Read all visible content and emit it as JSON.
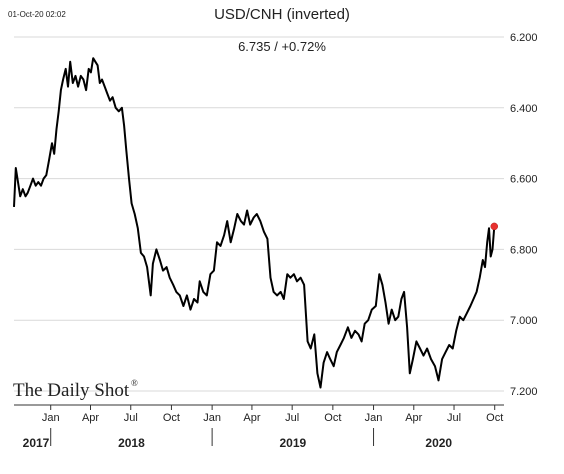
{
  "header": {
    "timestamp": "01-Oct-20 02:02",
    "title": "USD/CNH (inverted)",
    "last_value_text": "6.735  /  +0.72%"
  },
  "brand": {
    "text": "The Daily Shot",
    "mark": "®"
  },
  "colors": {
    "line": "#000000",
    "last_point": "#e8312f",
    "grid": "#d9d9d9"
  },
  "chart_data": {
    "type": "line",
    "title": "USD/CNH (inverted)",
    "y_inverted": true,
    "ylim": [
      6.2,
      7.2
    ],
    "yticks": [
      6.2,
      6.4,
      6.6,
      6.8,
      7.0,
      7.2
    ],
    "ytick_labels": [
      "6.200",
      "6.400",
      "6.600",
      "6.800",
      "7.000",
      "7.200"
    ],
    "xlim": [
      "2017-10-10",
      "2020-10-22"
    ],
    "xticks": [
      {
        "date": "2018-01-01",
        "label": "Jan"
      },
      {
        "date": "2018-04-01",
        "label": "Apr"
      },
      {
        "date": "2018-07-01",
        "label": "Jul"
      },
      {
        "date": "2018-10-01",
        "label": "Oct"
      },
      {
        "date": "2019-01-01",
        "label": "Jan"
      },
      {
        "date": "2019-04-01",
        "label": "Apr"
      },
      {
        "date": "2019-07-01",
        "label": "Jul"
      },
      {
        "date": "2019-10-01",
        "label": "Oct"
      },
      {
        "date": "2020-01-01",
        "label": "Jan"
      },
      {
        "date": "2020-04-01",
        "label": "Apr"
      },
      {
        "date": "2020-07-01",
        "label": "Jul"
      },
      {
        "date": "2020-10-01",
        "label": "Oct"
      }
    ],
    "years": [
      {
        "label": "2017",
        "divider": null
      },
      {
        "label": "2018",
        "divider": "2018-01-01"
      },
      {
        "label": "2019",
        "divider": "2019-01-01"
      },
      {
        "label": "2020",
        "divider": "2020-01-01"
      }
    ],
    "series": [
      {
        "points": [
          [
            "2017-10-10",
            6.68
          ],
          [
            "2017-10-14",
            6.57
          ],
          [
            "2017-10-19",
            6.61
          ],
          [
            "2017-10-24",
            6.65
          ],
          [
            "2017-10-30",
            6.63
          ],
          [
            "2017-11-05",
            6.65
          ],
          [
            "2017-11-10",
            6.64
          ],
          [
            "2017-11-16",
            6.62
          ],
          [
            "2017-11-22",
            6.6
          ],
          [
            "2017-11-28",
            6.62
          ],
          [
            "2017-12-04",
            6.61
          ],
          [
            "2017-12-10",
            6.62
          ],
          [
            "2017-12-16",
            6.6
          ],
          [
            "2017-12-22",
            6.59
          ],
          [
            "2017-12-28",
            6.55
          ],
          [
            "2018-01-04",
            6.5
          ],
          [
            "2018-01-09",
            6.53
          ],
          [
            "2018-01-14",
            6.46
          ],
          [
            "2018-01-19",
            6.41
          ],
          [
            "2018-01-24",
            6.35
          ],
          [
            "2018-01-29",
            6.32
          ],
          [
            "2018-02-04",
            6.29
          ],
          [
            "2018-02-09",
            6.34
          ],
          [
            "2018-02-14",
            6.27
          ],
          [
            "2018-02-20",
            6.33
          ],
          [
            "2018-02-26",
            6.31
          ],
          [
            "2018-03-04",
            6.34
          ],
          [
            "2018-03-10",
            6.31
          ],
          [
            "2018-03-16",
            6.32
          ],
          [
            "2018-03-22",
            6.35
          ],
          [
            "2018-03-28",
            6.29
          ],
          [
            "2018-04-02",
            6.3
          ],
          [
            "2018-04-07",
            6.26
          ],
          [
            "2018-04-12",
            6.27
          ],
          [
            "2018-04-17",
            6.28
          ],
          [
            "2018-04-22",
            6.33
          ],
          [
            "2018-04-27",
            6.32
          ],
          [
            "2018-05-03",
            6.34
          ],
          [
            "2018-05-09",
            6.36
          ],
          [
            "2018-05-15",
            6.38
          ],
          [
            "2018-05-21",
            6.37
          ],
          [
            "2018-05-28",
            6.4
          ],
          [
            "2018-06-04",
            6.41
          ],
          [
            "2018-06-11",
            6.4
          ],
          [
            "2018-06-16",
            6.45
          ],
          [
            "2018-06-21",
            6.52
          ],
          [
            "2018-06-27",
            6.6
          ],
          [
            "2018-07-03",
            6.67
          ],
          [
            "2018-07-10",
            6.7
          ],
          [
            "2018-07-17",
            6.74
          ],
          [
            "2018-07-24",
            6.81
          ],
          [
            "2018-07-31",
            6.82
          ],
          [
            "2018-08-07",
            6.85
          ],
          [
            "2018-08-15",
            6.93
          ],
          [
            "2018-08-20",
            6.84
          ],
          [
            "2018-08-28",
            6.8
          ],
          [
            "2018-09-05",
            6.83
          ],
          [
            "2018-09-12",
            6.86
          ],
          [
            "2018-09-20",
            6.85
          ],
          [
            "2018-09-27",
            6.88
          ],
          [
            "2018-10-05",
            6.9
          ],
          [
            "2018-10-12",
            6.92
          ],
          [
            "2018-10-20",
            6.93
          ],
          [
            "2018-10-28",
            6.96
          ],
          [
            "2018-11-05",
            6.93
          ],
          [
            "2018-11-13",
            6.97
          ],
          [
            "2018-11-21",
            6.94
          ],
          [
            "2018-11-29",
            6.95
          ],
          [
            "2018-12-04",
            6.89
          ],
          [
            "2018-12-12",
            6.92
          ],
          [
            "2018-12-20",
            6.93
          ],
          [
            "2018-12-28",
            6.87
          ],
          [
            "2019-01-05",
            6.86
          ],
          [
            "2019-01-12",
            6.78
          ],
          [
            "2019-01-20",
            6.79
          ],
          [
            "2019-01-28",
            6.76
          ],
          [
            "2019-02-04",
            6.72
          ],
          [
            "2019-02-12",
            6.78
          ],
          [
            "2019-02-20",
            6.74
          ],
          [
            "2019-02-27",
            6.7
          ],
          [
            "2019-03-07",
            6.72
          ],
          [
            "2019-03-14",
            6.73
          ],
          [
            "2019-03-21",
            6.69
          ],
          [
            "2019-03-28",
            6.73
          ],
          [
            "2019-04-05",
            6.71
          ],
          [
            "2019-04-12",
            6.7
          ],
          [
            "2019-04-20",
            6.72
          ],
          [
            "2019-04-28",
            6.75
          ],
          [
            "2019-05-06",
            6.77
          ],
          [
            "2019-05-13",
            6.88
          ],
          [
            "2019-05-20",
            6.92
          ],
          [
            "2019-05-28",
            6.93
          ],
          [
            "2019-06-05",
            6.92
          ],
          [
            "2019-06-12",
            6.94
          ],
          [
            "2019-06-20",
            6.87
          ],
          [
            "2019-06-27",
            6.88
          ],
          [
            "2019-07-05",
            6.87
          ],
          [
            "2019-07-12",
            6.89
          ],
          [
            "2019-07-20",
            6.88
          ],
          [
            "2019-07-28",
            6.9
          ],
          [
            "2019-08-05",
            7.06
          ],
          [
            "2019-08-12",
            7.08
          ],
          [
            "2019-08-20",
            7.04
          ],
          [
            "2019-08-27",
            7.15
          ],
          [
            "2019-09-03",
            7.19
          ],
          [
            "2019-09-10",
            7.12
          ],
          [
            "2019-09-18",
            7.09
          ],
          [
            "2019-09-25",
            7.11
          ],
          [
            "2019-10-03",
            7.13
          ],
          [
            "2019-10-10",
            7.09
          ],
          [
            "2019-10-18",
            7.07
          ],
          [
            "2019-10-26",
            7.05
          ],
          [
            "2019-11-04",
            7.02
          ],
          [
            "2019-11-12",
            7.05
          ],
          [
            "2019-11-20",
            7.03
          ],
          [
            "2019-11-28",
            7.04
          ],
          [
            "2019-12-05",
            7.06
          ],
          [
            "2019-12-12",
            7.01
          ],
          [
            "2019-12-20",
            7.0
          ],
          [
            "2019-12-28",
            6.97
          ],
          [
            "2020-01-06",
            6.96
          ],
          [
            "2020-01-14",
            6.87
          ],
          [
            "2020-01-21",
            6.9
          ],
          [
            "2020-01-28",
            6.95
          ],
          [
            "2020-02-04",
            7.01
          ],
          [
            "2020-02-11",
            6.97
          ],
          [
            "2020-02-19",
            7.0
          ],
          [
            "2020-02-26",
            6.99
          ],
          [
            "2020-03-04",
            6.94
          ],
          [
            "2020-03-10",
            6.92
          ],
          [
            "2020-03-17",
            7.02
          ],
          [
            "2020-03-23",
            7.15
          ],
          [
            "2020-03-30",
            7.11
          ],
          [
            "2020-04-07",
            7.06
          ],
          [
            "2020-04-15",
            7.08
          ],
          [
            "2020-04-23",
            7.1
          ],
          [
            "2020-05-01",
            7.08
          ],
          [
            "2020-05-10",
            7.11
          ],
          [
            "2020-05-19",
            7.13
          ],
          [
            "2020-05-27",
            7.17
          ],
          [
            "2020-06-04",
            7.11
          ],
          [
            "2020-06-12",
            7.09
          ],
          [
            "2020-06-20",
            7.07
          ],
          [
            "2020-06-28",
            7.08
          ],
          [
            "2020-07-06",
            7.03
          ],
          [
            "2020-07-14",
            6.99
          ],
          [
            "2020-07-22",
            7.0
          ],
          [
            "2020-07-30",
            6.98
          ],
          [
            "2020-08-07",
            6.96
          ],
          [
            "2020-08-14",
            6.94
          ],
          [
            "2020-08-21",
            6.92
          ],
          [
            "2020-08-28",
            6.88
          ],
          [
            "2020-09-04",
            6.83
          ],
          [
            "2020-09-09",
            6.85
          ],
          [
            "2020-09-14",
            6.78
          ],
          [
            "2020-09-18",
            6.74
          ],
          [
            "2020-09-22",
            6.82
          ],
          [
            "2020-09-26",
            6.8
          ],
          [
            "2020-09-30",
            6.735
          ]
        ],
        "last_point": [
          "2020-09-30",
          6.735
        ]
      }
    ]
  }
}
